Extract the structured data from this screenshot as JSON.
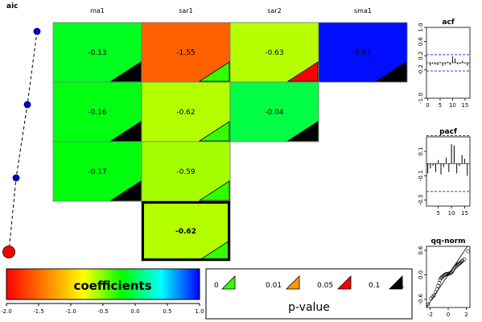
{
  "chart_data": [
    {
      "type": "heatmap",
      "title": "aic",
      "columns": [
        "ma1",
        "sar1",
        "sar2",
        "sma1"
      ],
      "cells": [
        {
          "row": 0,
          "col": 0,
          "value": -0.13,
          "label": "-0.13",
          "pband": "black"
        },
        {
          "row": 0,
          "col": 1,
          "value": -1.55,
          "label": "-1.55",
          "pband": "green"
        },
        {
          "row": 0,
          "col": 2,
          "value": -0.63,
          "label": "-0.63",
          "pband": "red"
        },
        {
          "row": 0,
          "col": 3,
          "value": 0.97,
          "label": "0.97",
          "pband": "black"
        },
        {
          "row": 1,
          "col": 0,
          "value": -0.16,
          "label": "-0.16",
          "pband": "black"
        },
        {
          "row": 1,
          "col": 1,
          "value": -0.62,
          "label": "-0.62",
          "pband": "green"
        },
        {
          "row": 1,
          "col": 2,
          "value": -0.04,
          "label": "-0.04",
          "pband": "black"
        },
        {
          "row": 2,
          "col": 0,
          "value": -0.17,
          "label": "-0.17",
          "pband": "black"
        },
        {
          "row": 2,
          "col": 1,
          "value": -0.59,
          "label": "-0.59",
          "pband": "green"
        },
        {
          "row": 3,
          "col": 1,
          "value": -0.62,
          "label": "-0.62",
          "pband": "green",
          "selected": true
        }
      ],
      "aic_path": {
        "rows": [
          0,
          1,
          2,
          3
        ],
        "selected_row": 3
      }
    },
    {
      "type": "bar",
      "title": "coefficients",
      "ticks": [
        "-2.0",
        "-1.5",
        "-1.0",
        "-0.5",
        "0.0",
        "0.5",
        "1.0"
      ],
      "range": [
        -2,
        1
      ],
      "colors": [
        "#ff0000",
        "#ff8000",
        "#ffff00",
        "#00ff00",
        "#00ffff",
        "#0000ff"
      ]
    },
    {
      "type": "table",
      "title": "p-value",
      "breaks": [
        "0",
        "0.01",
        "0.05",
        "0.1",
        "1"
      ],
      "swatch_colors": [
        "#33ff00",
        "#ff9900",
        "#ff0000",
        "#000000"
      ]
    },
    {
      "type": "bar",
      "title": "acf",
      "x": [
        1,
        2,
        3,
        4,
        5,
        6,
        7,
        8,
        9,
        10,
        11,
        12,
        13,
        14,
        15,
        16
      ],
      "values": [
        -0.08,
        -0.03,
        -0.05,
        -0.07,
        0.02,
        -0.09,
        -0.05,
        0.03,
        -0.06,
        0.18,
        0.12,
        -0.04,
        -0.03,
        0.05,
        -0.02,
        -0.08
      ],
      "ylim": [
        -1,
        1
      ],
      "yticks": [
        "-1.0",
        "-0.2",
        "0.2",
        "0.6",
        "1.0"
      ],
      "xticks": [
        "0",
        "5",
        "10",
        "15"
      ],
      "ci": 0.23
    },
    {
      "type": "bar",
      "title": "pacf",
      "x": [
        1,
        2,
        3,
        4,
        5,
        6,
        7,
        8,
        9,
        10,
        11,
        12,
        13,
        14,
        15,
        16
      ],
      "values": [
        -0.08,
        -0.04,
        -0.02,
        -0.07,
        0.03,
        -0.09,
        -0.03,
        0.05,
        -0.07,
        0.16,
        0.15,
        -0.08,
        -0.02,
        0.07,
        0.04,
        -0.1
      ],
      "ylim": [
        -0.35,
        0.22
      ],
      "yticks": [
        "-0.3",
        "-0.1",
        "0.1"
      ],
      "xticks": [
        "5",
        "10",
        "15"
      ],
      "ci": 0.23
    },
    {
      "type": "scatter",
      "title": "qq-norm",
      "xlim": [
        -2.4,
        2.4
      ],
      "ylim": [
        -0.8,
        0.7
      ],
      "xticks": [
        "-2",
        "0",
        "2"
      ],
      "yticks": [
        "-0.6",
        "0.0",
        "0.6"
      ],
      "points": [
        [
          -2.2,
          -0.72
        ],
        [
          -1.9,
          -0.58
        ],
        [
          -1.7,
          -0.53
        ],
        [
          -1.55,
          -0.5
        ],
        [
          -1.4,
          -0.42
        ],
        [
          -1.25,
          -0.35
        ],
        [
          -1.1,
          -0.27
        ],
        [
          -1.0,
          -0.2
        ],
        [
          -0.9,
          -0.12
        ],
        [
          -0.8,
          -0.08
        ],
        [
          -0.7,
          -0.06
        ],
        [
          -0.6,
          -0.04
        ],
        [
          -0.5,
          -0.02
        ],
        [
          -0.4,
          0.0
        ],
        [
          -0.3,
          0.01
        ],
        [
          -0.2,
          0.02
        ],
        [
          -0.1,
          0.02
        ],
        [
          0.0,
          0.03
        ],
        [
          0.1,
          0.03
        ],
        [
          0.2,
          0.04
        ],
        [
          0.3,
          0.05
        ],
        [
          0.4,
          0.07
        ],
        [
          0.5,
          0.1
        ],
        [
          0.6,
          0.14
        ],
        [
          0.7,
          0.17
        ],
        [
          0.8,
          0.2
        ],
        [
          0.9,
          0.22
        ],
        [
          1.0,
          0.24
        ],
        [
          1.1,
          0.26
        ],
        [
          1.2,
          0.27
        ],
        [
          1.3,
          0.29
        ],
        [
          1.4,
          0.31
        ],
        [
          1.5,
          0.33
        ],
        [
          1.6,
          0.35
        ],
        [
          1.8,
          0.38
        ],
        [
          2.2,
          0.58
        ]
      ],
      "line": {
        "slope": 0.33,
        "intercept": 0.0
      }
    }
  ]
}
